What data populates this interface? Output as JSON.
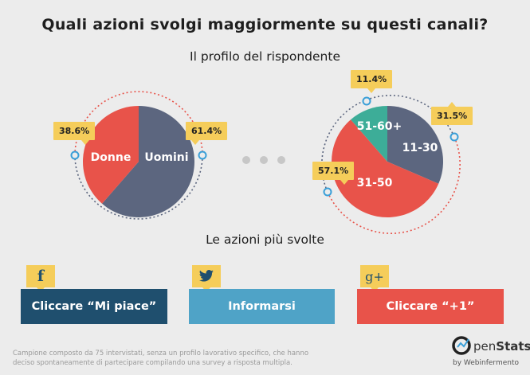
{
  "header": {
    "title": "Quali azioni svolgi maggiormente su questi canali?",
    "subtitle": "Il profilo del rispondente"
  },
  "chart_data": [
    {
      "type": "pie",
      "title": "Il profilo del rispondente",
      "categories": [
        "Uomini",
        "Donne"
      ],
      "values": [
        61.4,
        38.6
      ],
      "labels": [
        "61.4%",
        "38.6%"
      ],
      "colors": [
        "#5c667f",
        "#e8534a"
      ]
    },
    {
      "type": "pie",
      "title": "Il profilo del rispondente",
      "categories": [
        "11-30",
        "31-50",
        "51-60+"
      ],
      "values": [
        31.5,
        57.1,
        11.4
      ],
      "labels": [
        "31.5%",
        "57.1%",
        "11.4%"
      ],
      "colors": [
        "#5c667f",
        "#e8534a",
        "#3dad98"
      ]
    }
  ],
  "actions": {
    "section_title": "Le azioni più svolte",
    "items": [
      {
        "label": "Cliccare “Mi piace”",
        "icon": "facebook-icon",
        "icon_glyph": "f",
        "color": "#1f4f6e"
      },
      {
        "label": "Informarsi",
        "icon": "twitter-icon",
        "icon_glyph": "",
        "color": "#4fa3c7"
      },
      {
        "label": "Cliccare “+1”",
        "icon": "google-plus-icon",
        "icon_glyph": "g+",
        "color": "#e8534a"
      }
    ]
  },
  "footer": {
    "note": "Campione composto da 75 intervistati, senza un profilo lavorativo specifico, che hanno deciso spontaneamente di partecipare compilando una survey a risposta multipla.",
    "brand_o": "O",
    "brand_pen": "pen",
    "brand_stats": "Stats",
    "brand_by": "by Webinfermento"
  },
  "colors": {
    "background": "#ececec",
    "callout": "#f5cd5a",
    "ring_dots": "#e8534a",
    "ring_dots_alt": "#5c667f",
    "marker": "#3a9fd8"
  }
}
